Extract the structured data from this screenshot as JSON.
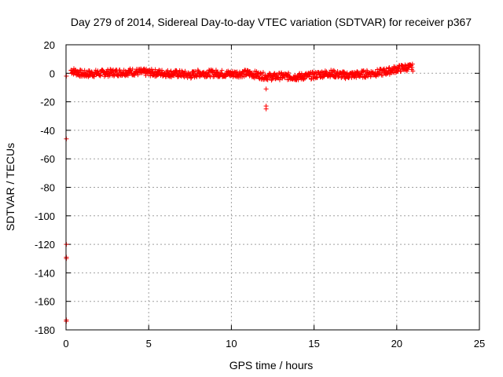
{
  "chart_data": {
    "type": "scatter",
    "title": "Day 279 of 2014, Sidereal Day-to-day VTEC variation (SDTVAR) for receiver p367",
    "xlabel": "GPS time / hours",
    "ylabel": "SDTVAR / TECUs",
    "xlim": [
      0,
      25
    ],
    "ylim": [
      -180,
      20
    ],
    "xticks": [
      0,
      5,
      10,
      15,
      20,
      25
    ],
    "yticks": [
      20,
      0,
      -20,
      -40,
      -60,
      -80,
      -100,
      -120,
      -140,
      -160,
      -180
    ],
    "grid": true,
    "marker": "+",
    "color": "#ff0000",
    "series": [
      {
        "name": "SDTVAR",
        "trend": [
          [
            0.3,
            2
          ],
          [
            1.0,
            -0.5
          ],
          [
            2.0,
            0
          ],
          [
            3.0,
            0.5
          ],
          [
            4.0,
            1
          ],
          [
            5.0,
            0.5
          ],
          [
            6.0,
            0
          ],
          [
            7.0,
            -0.5
          ],
          [
            7.5,
            -1.5
          ],
          [
            8.0,
            0
          ],
          [
            9.0,
            0
          ],
          [
            10.0,
            -0.5
          ],
          [
            11.0,
            0
          ],
          [
            11.5,
            -1
          ],
          [
            12.0,
            -2
          ],
          [
            12.5,
            -2.5
          ],
          [
            13.0,
            -2
          ],
          [
            14.0,
            -2.5
          ],
          [
            15.0,
            -1.5
          ],
          [
            15.5,
            -0.5
          ],
          [
            16.0,
            0
          ],
          [
            16.5,
            -1
          ],
          [
            17.0,
            -1.5
          ],
          [
            18.0,
            -0.5
          ],
          [
            19.0,
            0.5
          ],
          [
            19.5,
            1.5
          ],
          [
            20.0,
            3
          ],
          [
            20.5,
            4
          ],
          [
            21.0,
            4
          ]
        ],
        "outliers": [
          [
            0.02,
            -2
          ],
          [
            0.02,
            -46
          ],
          [
            0.02,
            -120
          ],
          [
            0.02,
            -129
          ],
          [
            0.02,
            -130
          ],
          [
            0.02,
            -173
          ],
          [
            0.02,
            -174
          ],
          [
            12.1,
            -11
          ],
          [
            12.1,
            -23
          ],
          [
            12.1,
            -25
          ]
        ]
      }
    ]
  }
}
